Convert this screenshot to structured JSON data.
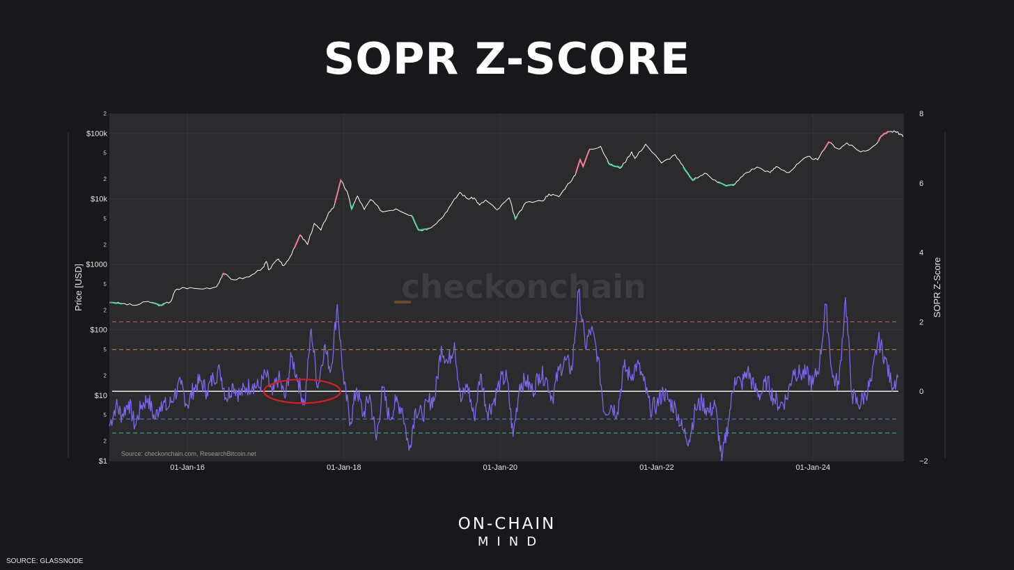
{
  "page": {
    "title": "SOPR Z-SCORE",
    "brand_line1": "ON-CHAIN",
    "brand_line2": "MIND",
    "footer_source": "SOURCE: GLASSNODE"
  },
  "colors": {
    "background": "#18181c",
    "plot_bg": "#2b2b2e",
    "price_line": "#ffffff",
    "price_high_highlight": "#ff6f8a",
    "price_low_highlight": "#3ee6a8",
    "zscore_line": "#7b68ee",
    "level_2": "#d05a7a",
    "level_1": "#d88a2c",
    "level_0": "#ffffff",
    "level_m1": "#3e8fd8",
    "level_m1_5": "#2fc79a",
    "annotation_circle": "#e01b1b"
  },
  "chart_data": {
    "type": "line",
    "title": "",
    "watermark": "checkonchain",
    "source_note": "Source: checkonchain.com, ResearchBitcoin.net",
    "x_ticks": [
      "01-Jan-16",
      "01-Jan-18",
      "01-Jan-20",
      "01-Jan-22",
      "01-Jan-24"
    ],
    "x_range": [
      "2015-01-01",
      "2025-03-01"
    ],
    "left_axis": {
      "label": "Price [USD]",
      "scale": "log",
      "range": [
        1,
        200000
      ],
      "major_ticks": [
        {
          "value": 1,
          "label": "$1"
        },
        {
          "value": 10,
          "label": "$10"
        },
        {
          "value": 100,
          "label": "$100"
        },
        {
          "value": 1000,
          "label": "$1000"
        },
        {
          "value": 10000,
          "label": "$10k"
        },
        {
          "value": 100000,
          "label": "$100k"
        }
      ],
      "minor_ticks": [
        {
          "value": 2,
          "label": "2"
        },
        {
          "value": 5,
          "label": "5"
        },
        {
          "value": 20,
          "label": "2"
        },
        {
          "value": 50,
          "label": "5"
        },
        {
          "value": 200,
          "label": "2"
        },
        {
          "value": 500,
          "label": "5"
        },
        {
          "value": 2000,
          "label": "2"
        },
        {
          "value": 5000,
          "label": "5"
        },
        {
          "value": 20000,
          "label": "2"
        },
        {
          "value": 50000,
          "label": "5"
        },
        {
          "value": 200000,
          "label": "2"
        }
      ]
    },
    "right_axis": {
      "label": "SOPR Z-Score",
      "scale": "linear",
      "range": [
        -2,
        8
      ],
      "ticks": [
        {
          "value": -2,
          "label": "−2"
        },
        {
          "value": 0,
          "label": "0"
        },
        {
          "value": 2,
          "label": "2"
        },
        {
          "value": 4,
          "label": "4"
        },
        {
          "value": 6,
          "label": "6"
        },
        {
          "value": 8,
          "label": "8"
        }
      ]
    },
    "reference_levels": [
      {
        "value": 2,
        "style": "dashed",
        "color_key": "level_2"
      },
      {
        "value": 1.2,
        "style": "dashed",
        "color_key": "level_1"
      },
      {
        "value": 0,
        "style": "solid",
        "color_key": "level_0"
      },
      {
        "value": -0.8,
        "style": "dashed",
        "color_key": "level_m1"
      },
      {
        "value": -1.2,
        "style": "dashed",
        "color_key": "level_m1_5"
      }
    ],
    "series": [
      {
        "name": "Price",
        "axis": "left",
        "points": [
          [
            "2015-01-15",
            260
          ],
          [
            "2015-03-01",
            250
          ],
          [
            "2015-05-01",
            235
          ],
          [
            "2015-07-01",
            270
          ],
          [
            "2015-09-01",
            235
          ],
          [
            "2015-10-15",
            270
          ],
          [
            "2015-11-05",
            400
          ],
          [
            "2015-12-15",
            440
          ],
          [
            "2016-03-01",
            420
          ],
          [
            "2016-05-15",
            450
          ],
          [
            "2016-06-16",
            720
          ],
          [
            "2016-08-01",
            580
          ],
          [
            "2016-10-15",
            640
          ],
          [
            "2016-12-20",
            900
          ],
          [
            "2017-01-04",
            1100
          ],
          [
            "2017-01-15",
            820
          ],
          [
            "2017-03-01",
            1200
          ],
          [
            "2017-03-25",
            950
          ],
          [
            "2017-05-01",
            1400
          ],
          [
            "2017-06-10",
            2800
          ],
          [
            "2017-07-15",
            2000
          ],
          [
            "2017-08-15",
            4200
          ],
          [
            "2017-09-15",
            3300
          ],
          [
            "2017-10-20",
            6000
          ],
          [
            "2017-11-15",
            7500
          ],
          [
            "2017-12-17",
            19000
          ],
          [
            "2018-01-15",
            13000
          ],
          [
            "2018-02-06",
            7000
          ],
          [
            "2018-03-05",
            11000
          ],
          [
            "2018-04-06",
            6800
          ],
          [
            "2018-05-05",
            9700
          ],
          [
            "2018-07-01",
            6300
          ],
          [
            "2018-09-01",
            7000
          ],
          [
            "2018-11-15",
            5500
          ],
          [
            "2018-12-15",
            3300
          ],
          [
            "2019-02-01",
            3500
          ],
          [
            "2019-04-02",
            5000
          ],
          [
            "2019-05-15",
            8000
          ],
          [
            "2019-06-26",
            12500
          ],
          [
            "2019-08-01",
            10000
          ],
          [
            "2019-09-01",
            10300
          ],
          [
            "2019-09-26",
            8000
          ],
          [
            "2019-10-26",
            9500
          ],
          [
            "2019-12-17",
            6700
          ],
          [
            "2020-02-12",
            10300
          ],
          [
            "2020-03-12",
            4900
          ],
          [
            "2020-05-01",
            8800
          ],
          [
            "2020-07-15",
            9200
          ],
          [
            "2020-08-15",
            11800
          ],
          [
            "2020-10-01",
            10700
          ],
          [
            "2020-11-05",
            15500
          ],
          [
            "2020-12-17",
            23000
          ],
          [
            "2021-01-08",
            40000
          ],
          [
            "2021-01-22",
            31000
          ],
          [
            "2021-02-21",
            57000
          ],
          [
            "2021-04-14",
            63000
          ],
          [
            "2021-05-23",
            34000
          ],
          [
            "2021-06-22",
            31000
          ],
          [
            "2021-07-20",
            30000
          ],
          [
            "2021-09-06",
            52000
          ],
          [
            "2021-09-21",
            41000
          ],
          [
            "2021-11-10",
            68000
          ],
          [
            "2022-01-24",
            35000
          ],
          [
            "2022-03-28",
            47000
          ],
          [
            "2022-05-12",
            28000
          ],
          [
            "2022-06-18",
            19000
          ],
          [
            "2022-08-14",
            24500
          ],
          [
            "2022-10-01",
            19200
          ],
          [
            "2022-11-21",
            15700
          ],
          [
            "2023-01-01",
            16600
          ],
          [
            "2023-02-15",
            24000
          ],
          [
            "2023-04-14",
            30400
          ],
          [
            "2023-06-15",
            25000
          ],
          [
            "2023-07-14",
            31000
          ],
          [
            "2023-09-11",
            25000
          ],
          [
            "2023-10-25",
            34500
          ],
          [
            "2023-12-08",
            44000
          ],
          [
            "2024-01-23",
            39000
          ],
          [
            "2024-03-14",
            73000
          ],
          [
            "2024-05-01",
            57000
          ],
          [
            "2024-06-07",
            71000
          ],
          [
            "2024-08-05",
            53000
          ],
          [
            "2024-09-06",
            53500
          ],
          [
            "2024-10-29",
            72000
          ],
          [
            "2024-11-13",
            90000
          ],
          [
            "2024-12-17",
            106000
          ],
          [
            "2025-01-20",
            105000
          ],
          [
            "2025-02-10",
            97000
          ],
          [
            "2025-02-25",
            88000
          ]
        ]
      },
      {
        "name": "SOPR Z-Score",
        "axis": "right",
        "points": [
          [
            "2015-01-01",
            -1.0
          ],
          [
            "2015-02-01",
            -0.4
          ],
          [
            "2015-03-01",
            -0.7
          ],
          [
            "2015-04-01",
            -0.3
          ],
          [
            "2015-05-01",
            -1.0
          ],
          [
            "2015-06-01",
            -0.4
          ],
          [
            "2015-07-01",
            -0.2
          ],
          [
            "2015-08-01",
            -0.8
          ],
          [
            "2015-09-01",
            -0.3
          ],
          [
            "2015-10-01",
            -0.5
          ],
          [
            "2015-11-01",
            -0.1
          ],
          [
            "2015-12-01",
            0.2
          ],
          [
            "2016-01-01",
            -0.4
          ],
          [
            "2016-02-01",
            0.1
          ],
          [
            "2016-03-01",
            0.3
          ],
          [
            "2016-04-01",
            0.0
          ],
          [
            "2016-05-01",
            0.4
          ],
          [
            "2016-06-01",
            0.6
          ],
          [
            "2016-07-01",
            -0.2
          ],
          [
            "2016-08-01",
            0.2
          ],
          [
            "2016-09-01",
            -0.1
          ],
          [
            "2016-10-01",
            0.1
          ],
          [
            "2016-11-01",
            0.2
          ],
          [
            "2016-12-01",
            0.1
          ],
          [
            "2017-01-01",
            0.5
          ],
          [
            "2017-02-01",
            -0.1
          ],
          [
            "2017-03-01",
            0.4
          ],
          [
            "2017-04-01",
            -0.2
          ],
          [
            "2017-05-01",
            1.0
          ],
          [
            "2017-06-01",
            0.3
          ],
          [
            "2017-07-01",
            -0.4
          ],
          [
            "2017-08-01",
            1.8
          ],
          [
            "2017-09-01",
            0.1
          ],
          [
            "2017-10-01",
            1.3
          ],
          [
            "2017-11-01",
            0.6
          ],
          [
            "2017-12-01",
            2.5
          ],
          [
            "2018-01-01",
            0.2
          ],
          [
            "2018-02-01",
            -0.9
          ],
          [
            "2018-03-01",
            0.1
          ],
          [
            "2018-04-01",
            -0.7
          ],
          [
            "2018-05-01",
            -0.1
          ],
          [
            "2018-06-01",
            -1.4
          ],
          [
            "2018-07-01",
            0.1
          ],
          [
            "2018-08-01",
            -0.8
          ],
          [
            "2018-09-01",
            -0.3
          ],
          [
            "2018-10-01",
            -0.5
          ],
          [
            "2018-11-01",
            -1.7
          ],
          [
            "2018-12-01",
            -0.5
          ],
          [
            "2019-01-01",
            -0.7
          ],
          [
            "2019-02-01",
            -0.3
          ],
          [
            "2019-03-01",
            -0.2
          ],
          [
            "2019-04-01",
            1.3
          ],
          [
            "2019-05-01",
            0.8
          ],
          [
            "2019-06-01",
            1.4
          ],
          [
            "2019-07-01",
            -0.3
          ],
          [
            "2019-08-01",
            0.2
          ],
          [
            "2019-09-01",
            -0.8
          ],
          [
            "2019-10-01",
            0.5
          ],
          [
            "2019-11-01",
            -0.6
          ],
          [
            "2019-12-01",
            -0.3
          ],
          [
            "2020-01-01",
            0.3
          ],
          [
            "2020-02-01",
            0.4
          ],
          [
            "2020-03-01",
            -1.3
          ],
          [
            "2020-04-01",
            0.2
          ],
          [
            "2020-05-01",
            0.3
          ],
          [
            "2020-06-01",
            0.0
          ],
          [
            "2020-07-01",
            0.5
          ],
          [
            "2020-08-01",
            0.4
          ],
          [
            "2020-09-01",
            -0.2
          ],
          [
            "2020-10-01",
            0.6
          ],
          [
            "2020-11-01",
            0.9
          ],
          [
            "2020-12-01",
            0.6
          ],
          [
            "2021-01-01",
            2.9
          ],
          [
            "2021-02-01",
            1.3
          ],
          [
            "2021-03-01",
            1.8
          ],
          [
            "2021-04-01",
            1.0
          ],
          [
            "2021-05-01",
            -0.6
          ],
          [
            "2021-06-01",
            -0.4
          ],
          [
            "2021-07-01",
            -0.6
          ],
          [
            "2021-08-01",
            0.7
          ],
          [
            "2021-09-01",
            0.4
          ],
          [
            "2021-10-01",
            0.8
          ],
          [
            "2021-11-01",
            0.3
          ],
          [
            "2021-12-01",
            -0.5
          ],
          [
            "2022-01-01",
            -0.4
          ],
          [
            "2022-02-01",
            0.0
          ],
          [
            "2022-03-01",
            -0.3
          ],
          [
            "2022-04-01",
            -0.5
          ],
          [
            "2022-05-01",
            -1.1
          ],
          [
            "2022-06-01",
            -1.4
          ],
          [
            "2022-07-01",
            -0.5
          ],
          [
            "2022-08-01",
            -0.3
          ],
          [
            "2022-09-01",
            -0.6
          ],
          [
            "2022-10-01",
            -0.4
          ],
          [
            "2022-11-01",
            -2.0
          ],
          [
            "2022-12-01",
            -0.9
          ],
          [
            "2023-01-01",
            0.4
          ],
          [
            "2023-02-01",
            0.2
          ],
          [
            "2023-03-01",
            0.6
          ],
          [
            "2023-04-01",
            0.1
          ],
          [
            "2023-05-01",
            -0.1
          ],
          [
            "2023-06-01",
            0.3
          ],
          [
            "2023-07-01",
            -0.2
          ],
          [
            "2023-08-01",
            -0.4
          ],
          [
            "2023-09-01",
            -0.2
          ],
          [
            "2023-10-01",
            0.6
          ],
          [
            "2023-11-01",
            0.5
          ],
          [
            "2023-12-01",
            0.5
          ],
          [
            "2024-01-01",
            0.2
          ],
          [
            "2024-02-01",
            0.8
          ],
          [
            "2024-03-01",
            2.5
          ],
          [
            "2024-04-01",
            0.4
          ],
          [
            "2024-05-01",
            0.2
          ],
          [
            "2024-06-01",
            2.7
          ],
          [
            "2024-07-01",
            -0.1
          ],
          [
            "2024-08-01",
            -0.4
          ],
          [
            "2024-09-01",
            -0.1
          ],
          [
            "2024-10-01",
            0.3
          ],
          [
            "2024-11-01",
            1.5
          ],
          [
            "2024-12-01",
            1.0
          ],
          [
            "2025-01-01",
            0.2
          ],
          [
            "2025-02-01",
            0.4
          ]
        ]
      }
    ],
    "annotation": {
      "type": "ellipse",
      "center_date": "2017-06-20",
      "center_zscore": 0.0,
      "note": "red circle highlighting SOPR region"
    },
    "grid": true,
    "legend": "none"
  }
}
